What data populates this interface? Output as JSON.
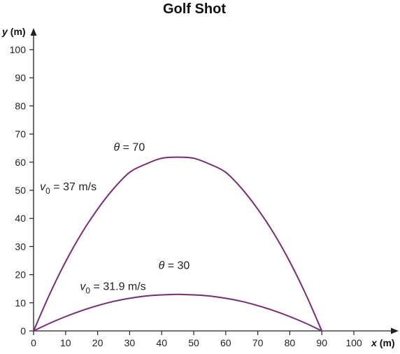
{
  "chart_data": {
    "type": "line",
    "title": "Golf Shot",
    "xlabel": {
      "symbol": "x",
      "unit": "(m)"
    },
    "ylabel": {
      "symbol": "y",
      "unit": "(m)"
    },
    "xlim": [
      0,
      100
    ],
    "ylim": [
      0,
      100
    ],
    "x_ticks": [
      0,
      10,
      20,
      30,
      40,
      50,
      60,
      70,
      80,
      90,
      100
    ],
    "y_ticks": [
      0,
      10,
      20,
      30,
      40,
      50,
      60,
      70,
      80,
      90,
      100
    ],
    "grid": false,
    "line_color": "#7b2a78",
    "series": [
      {
        "x": [
          0,
          5,
          10,
          15,
          20,
          25,
          30,
          35,
          40,
          45,
          50,
          55,
          60,
          65,
          70,
          75,
          80,
          85,
          90
        ],
        "y": [
          0,
          13.0,
          24.6,
          34.7,
          43.3,
          50.6,
          56.4,
          59.3,
          61.4,
          61.8,
          61.4,
          59.3,
          56.4,
          50.6,
          43.3,
          34.7,
          24.6,
          13.0,
          0
        ]
      },
      {
        "x": [
          0,
          5,
          10,
          15,
          20,
          25,
          30,
          35,
          40,
          45,
          50,
          55,
          60,
          65,
          70,
          75,
          80,
          85,
          90
        ],
        "y": [
          0,
          2.7,
          5.1,
          7.2,
          9.0,
          10.5,
          11.6,
          12.4,
          12.8,
          13.0,
          12.8,
          12.4,
          11.6,
          10.5,
          9.0,
          7.2,
          5.1,
          2.7,
          0
        ]
      }
    ],
    "annotations": [
      {
        "symbol": "θ",
        "rest": " = 70",
        "x": 25,
        "y": 64
      },
      {
        "symbol": "v",
        "sub": "0",
        "rest": " = 37 m/s",
        "x": 2,
        "y": 50
      },
      {
        "symbol": "θ",
        "rest": " = 30",
        "x": 39,
        "y": 22
      },
      {
        "symbol": "v",
        "sub": "0",
        "rest": " = 31.9 m/s",
        "x": 14.5,
        "y": 14.5
      }
    ]
  }
}
